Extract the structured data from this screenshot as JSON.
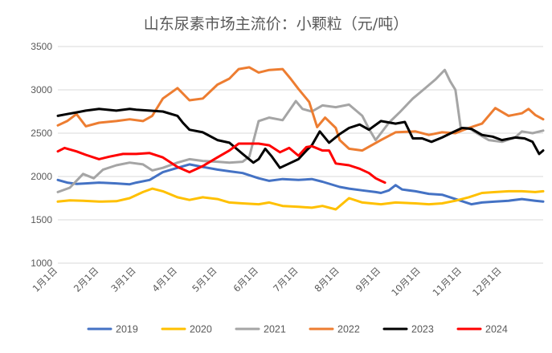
{
  "chart_data": {
    "type": "line",
    "title": "山东尿素市场主流价：小颗粒（元/吨）",
    "xlabel": "",
    "ylabel": "",
    "ylim": [
      1000,
      3500
    ],
    "yticks": [
      1000,
      1500,
      2000,
      2500,
      3000,
      3500
    ],
    "x_domain_days": [
      1,
      366
    ],
    "xticks": [
      {
        "label": "1月1日",
        "day": 1
      },
      {
        "label": "2月1日",
        "day": 32
      },
      {
        "label": "3月1日",
        "day": 60
      },
      {
        "label": "4月1日",
        "day": 91
      },
      {
        "label": "5月1日",
        "day": 121
      },
      {
        "label": "6月1日",
        "day": 152
      },
      {
        "label": "7月1日",
        "day": 182
      },
      {
        "label": "8月1日",
        "day": 213
      },
      {
        "label": "9月1日",
        "day": 244
      },
      {
        "label": "10月1日",
        "day": 274
      },
      {
        "label": "11月1日",
        "day": 305
      },
      {
        "label": "12月1日",
        "day": 335
      }
    ],
    "grid": true,
    "legend_position": "bottom",
    "series": [
      {
        "name": "2019",
        "color": "#4472c4",
        "points": [
          [
            1,
            1960
          ],
          [
            8,
            1930
          ],
          [
            15,
            1915
          ],
          [
            22,
            1920
          ],
          [
            32,
            1930
          ],
          [
            45,
            1920
          ],
          [
            55,
            1910
          ],
          [
            60,
            1930
          ],
          [
            70,
            1960
          ],
          [
            80,
            2050
          ],
          [
            91,
            2100
          ],
          [
            100,
            2140
          ],
          [
            110,
            2110
          ],
          [
            121,
            2080
          ],
          [
            130,
            2060
          ],
          [
            140,
            2040
          ],
          [
            152,
            1980
          ],
          [
            160,
            1950
          ],
          [
            170,
            1970
          ],
          [
            182,
            1960
          ],
          [
            192,
            1970
          ],
          [
            200,
            1940
          ],
          [
            213,
            1880
          ],
          [
            220,
            1860
          ],
          [
            230,
            1840
          ],
          [
            240,
            1820
          ],
          [
            244,
            1810
          ],
          [
            250,
            1840
          ],
          [
            255,
            1900
          ],
          [
            260,
            1850
          ],
          [
            270,
            1830
          ],
          [
            280,
            1800
          ],
          [
            290,
            1790
          ],
          [
            300,
            1740
          ],
          [
            306,
            1710
          ],
          [
            312,
            1680
          ],
          [
            320,
            1700
          ],
          [
            330,
            1710
          ],
          [
            340,
            1720
          ],
          [
            350,
            1740
          ],
          [
            360,
            1720
          ],
          [
            366,
            1710
          ]
        ]
      },
      {
        "name": "2020",
        "color": "#ffc000",
        "points": [
          [
            1,
            1710
          ],
          [
            10,
            1725
          ],
          [
            20,
            1720
          ],
          [
            32,
            1710
          ],
          [
            45,
            1715
          ],
          [
            55,
            1750
          ],
          [
            65,
            1820
          ],
          [
            72,
            1860
          ],
          [
            80,
            1830
          ],
          [
            91,
            1760
          ],
          [
            100,
            1730
          ],
          [
            110,
            1760
          ],
          [
            121,
            1740
          ],
          [
            130,
            1700
          ],
          [
            140,
            1690
          ],
          [
            152,
            1680
          ],
          [
            160,
            1700
          ],
          [
            170,
            1660
          ],
          [
            182,
            1650
          ],
          [
            192,
            1640
          ],
          [
            200,
            1660
          ],
          [
            210,
            1620
          ],
          [
            220,
            1750
          ],
          [
            230,
            1700
          ],
          [
            244,
            1680
          ],
          [
            255,
            1700
          ],
          [
            270,
            1690
          ],
          [
            280,
            1680
          ],
          [
            290,
            1690
          ],
          [
            300,
            1720
          ],
          [
            310,
            1760
          ],
          [
            320,
            1810
          ],
          [
            330,
            1820
          ],
          [
            340,
            1830
          ],
          [
            350,
            1830
          ],
          [
            360,
            1820
          ],
          [
            366,
            1830
          ]
        ]
      },
      {
        "name": "2021",
        "color": "#a5a5a5",
        "points": [
          [
            1,
            1820
          ],
          [
            10,
            1870
          ],
          [
            20,
            2030
          ],
          [
            28,
            1980
          ],
          [
            35,
            2080
          ],
          [
            45,
            2130
          ],
          [
            55,
            2160
          ],
          [
            65,
            2140
          ],
          [
            72,
            2070
          ],
          [
            80,
            2100
          ],
          [
            91,
            2160
          ],
          [
            100,
            2200
          ],
          [
            110,
            2180
          ],
          [
            121,
            2170
          ],
          [
            130,
            2160
          ],
          [
            140,
            2170
          ],
          [
            145,
            2230
          ],
          [
            152,
            2640
          ],
          [
            160,
            2680
          ],
          [
            170,
            2650
          ],
          [
            180,
            2870
          ],
          [
            185,
            2780
          ],
          [
            192,
            2750
          ],
          [
            200,
            2820
          ],
          [
            210,
            2800
          ],
          [
            220,
            2830
          ],
          [
            230,
            2700
          ],
          [
            235,
            2550
          ],
          [
            240,
            2420
          ],
          [
            244,
            2500
          ],
          [
            250,
            2620
          ],
          [
            258,
            2740
          ],
          [
            268,
            2900
          ],
          [
            275,
            2990
          ],
          [
            285,
            3120
          ],
          [
            292,
            3230
          ],
          [
            296,
            3100
          ],
          [
            300,
            3000
          ],
          [
            304,
            2560
          ],
          [
            310,
            2560
          ],
          [
            316,
            2500
          ],
          [
            325,
            2420
          ],
          [
            335,
            2400
          ],
          [
            345,
            2450
          ],
          [
            350,
            2520
          ],
          [
            358,
            2500
          ],
          [
            366,
            2530
          ]
        ]
      },
      {
        "name": "2022",
        "color": "#ed7d31",
        "points": [
          [
            1,
            2590
          ],
          [
            8,
            2640
          ],
          [
            15,
            2720
          ],
          [
            22,
            2580
          ],
          [
            32,
            2620
          ],
          [
            45,
            2640
          ],
          [
            55,
            2660
          ],
          [
            65,
            2640
          ],
          [
            72,
            2700
          ],
          [
            80,
            2900
          ],
          [
            91,
            3020
          ],
          [
            100,
            2880
          ],
          [
            110,
            2900
          ],
          [
            121,
            3060
          ],
          [
            130,
            3130
          ],
          [
            137,
            3240
          ],
          [
            145,
            3260
          ],
          [
            152,
            3200
          ],
          [
            160,
            3230
          ],
          [
            170,
            3240
          ],
          [
            176,
            3130
          ],
          [
            182,
            3010
          ],
          [
            190,
            2860
          ],
          [
            196,
            2570
          ],
          [
            202,
            2680
          ],
          [
            210,
            2560
          ],
          [
            213,
            2420
          ],
          [
            220,
            2320
          ],
          [
            230,
            2300
          ],
          [
            244,
            2420
          ],
          [
            255,
            2510
          ],
          [
            270,
            2520
          ],
          [
            280,
            2480
          ],
          [
            290,
            2510
          ],
          [
            300,
            2500
          ],
          [
            310,
            2560
          ],
          [
            320,
            2610
          ],
          [
            330,
            2790
          ],
          [
            340,
            2700
          ],
          [
            350,
            2730
          ],
          [
            355,
            2780
          ],
          [
            360,
            2710
          ],
          [
            366,
            2660
          ]
        ]
      },
      {
        "name": "2023",
        "color": "#000000",
        "points": [
          [
            1,
            2700
          ],
          [
            8,
            2720
          ],
          [
            15,
            2740
          ],
          [
            22,
            2760
          ],
          [
            32,
            2780
          ],
          [
            45,
            2760
          ],
          [
            55,
            2780
          ],
          [
            60,
            2770
          ],
          [
            70,
            2760
          ],
          [
            80,
            2750
          ],
          [
            91,
            2700
          ],
          [
            95,
            2620
          ],
          [
            100,
            2540
          ],
          [
            110,
            2510
          ],
          [
            121,
            2420
          ],
          [
            130,
            2390
          ],
          [
            140,
            2260
          ],
          [
            148,
            2160
          ],
          [
            152,
            2200
          ],
          [
            157,
            2320
          ],
          [
            162,
            2230
          ],
          [
            168,
            2100
          ],
          [
            175,
            2150
          ],
          [
            182,
            2200
          ],
          [
            188,
            2300
          ],
          [
            192,
            2360
          ],
          [
            198,
            2520
          ],
          [
            205,
            2390
          ],
          [
            213,
            2490
          ],
          [
            220,
            2560
          ],
          [
            228,
            2600
          ],
          [
            235,
            2540
          ],
          [
            244,
            2640
          ],
          [
            255,
            2610
          ],
          [
            262,
            2630
          ],
          [
            268,
            2440
          ],
          [
            275,
            2440
          ],
          [
            282,
            2400
          ],
          [
            290,
            2450
          ],
          [
            298,
            2510
          ],
          [
            305,
            2560
          ],
          [
            312,
            2550
          ],
          [
            320,
            2480
          ],
          [
            328,
            2460
          ],
          [
            335,
            2420
          ],
          [
            345,
            2450
          ],
          [
            352,
            2440
          ],
          [
            358,
            2400
          ],
          [
            363,
            2260
          ],
          [
            366,
            2300
          ]
        ]
      },
      {
        "name": "2024",
        "color": "#ff0000",
        "points": [
          [
            1,
            2290
          ],
          [
            6,
            2330
          ],
          [
            15,
            2290
          ],
          [
            22,
            2250
          ],
          [
            32,
            2200
          ],
          [
            40,
            2230
          ],
          [
            50,
            2260
          ],
          [
            60,
            2260
          ],
          [
            70,
            2270
          ],
          [
            80,
            2220
          ],
          [
            86,
            2160
          ],
          [
            91,
            2110
          ],
          [
            100,
            2050
          ],
          [
            110,
            2120
          ],
          [
            121,
            2220
          ],
          [
            130,
            2300
          ],
          [
            137,
            2380
          ],
          [
            145,
            2380
          ],
          [
            152,
            2380
          ],
          [
            160,
            2360
          ],
          [
            168,
            2280
          ],
          [
            175,
            2330
          ],
          [
            182,
            2240
          ],
          [
            188,
            2340
          ],
          [
            192,
            2350
          ],
          [
            200,
            2300
          ],
          [
            205,
            2300
          ],
          [
            210,
            2150
          ],
          [
            220,
            2130
          ],
          [
            228,
            2090
          ],
          [
            235,
            2040
          ],
          [
            240,
            1980
          ],
          [
            244,
            1950
          ],
          [
            247,
            1930
          ]
        ]
      }
    ]
  }
}
